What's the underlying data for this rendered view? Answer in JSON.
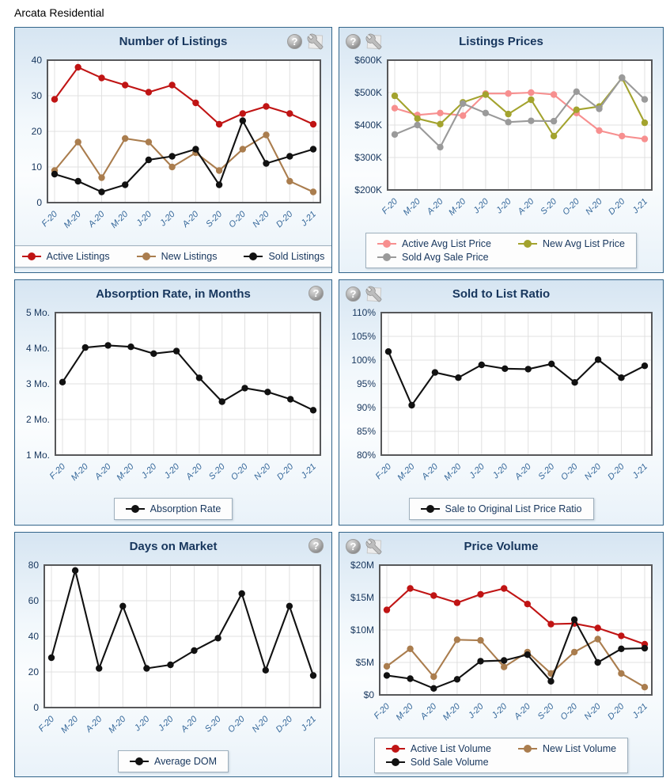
{
  "page_title": "Arcata Residential",
  "icon_names": {
    "help": "help-icon",
    "tools": "tools-icon"
  },
  "help_glyph": "?",
  "colors": {
    "active_red": "#c01414",
    "new_tan": "#aa7d4e",
    "sold_black": "#111111",
    "active_pink": "#f78f8f",
    "new_olive": "#a3a32e",
    "sold_gray": "#9a9a9a",
    "title_navy": "#17365d",
    "axis_steelblue": "#336699",
    "panel_border": "#33658a",
    "grid_line": "#e0e0e0",
    "plot_border": "#57585a"
  },
  "chart_data": [
    {
      "type": "line",
      "title": "Number of Listings",
      "icons": [
        "help-icon",
        "tools-icon"
      ],
      "icons_side": "right",
      "legend_position": "bottom",
      "legend_columns": 3,
      "grid": true,
      "categories": [
        "F-20",
        "M-20",
        "A-20",
        "M-20",
        "J-20",
        "J-20",
        "A-20",
        "S-20",
        "O-20",
        "N-20",
        "D-20",
        "J-21"
      ],
      "ylim": [
        0,
        40
      ],
      "ytick_values": [
        0,
        10,
        20,
        30,
        40
      ],
      "ytick_labels": [
        "0",
        "10",
        "20",
        "30",
        "40"
      ],
      "series": [
        {
          "name": "Active Listings",
          "color": "#c01414",
          "values": [
            29,
            38,
            35,
            33,
            31,
            33,
            28,
            22,
            25,
            27,
            25,
            22
          ]
        },
        {
          "name": "New Listings",
          "color": "#aa7d4e",
          "values": [
            9,
            17,
            7,
            18,
            17,
            10,
            14,
            9,
            15,
            19,
            6,
            3
          ]
        },
        {
          "name": "Sold Listings",
          "color": "#111111",
          "values": [
            8,
            6,
            3,
            5,
            12,
            13,
            15,
            5,
            23,
            11,
            13,
            15
          ]
        }
      ]
    },
    {
      "type": "line",
      "title": "Listings Prices",
      "icons": [
        "help-icon",
        "tools-icon"
      ],
      "icons_side": "left",
      "legend_position": "bottom",
      "legend_columns": 2,
      "grid": true,
      "categories": [
        "F-20",
        "M-20",
        "A-20",
        "M-20",
        "J-20",
        "J-20",
        "A-20",
        "S-20",
        "O-20",
        "N-20",
        "D-20",
        "J-21"
      ],
      "ylim": [
        200000,
        600000
      ],
      "ytick_values": [
        200000,
        300000,
        400000,
        500000,
        600000
      ],
      "ytick_labels": [
        "$200K",
        "$300K",
        "$400K",
        "$500K",
        "$600K"
      ],
      "series": [
        {
          "name": "Active Avg List Price",
          "color": "#f78f8f",
          "values": [
            452000,
            431000,
            437000,
            429000,
            497000,
            497000,
            500000,
            494000,
            437000,
            383000,
            366000,
            357000
          ]
        },
        {
          "name": "New Avg List Price",
          "color": "#a3a32e",
          "values": [
            490000,
            420000,
            403000,
            470000,
            494000,
            434000,
            478000,
            366000,
            447000,
            457000,
            545000,
            407000
          ]
        },
        {
          "name": "Sold Avg Sale Price",
          "color": "#9a9a9a",
          "values": [
            371000,
            400000,
            332000,
            466000,
            437000,
            409000,
            413000,
            412000,
            503000,
            450000,
            546000,
            479000
          ]
        }
      ]
    },
    {
      "type": "line",
      "title": "Absorption Rate, in Months",
      "icons": [
        "help-icon"
      ],
      "icons_side": "right",
      "legend_position": "bottom",
      "legend_columns": 1,
      "grid": true,
      "categories": [
        "F-20",
        "M-20",
        "A-20",
        "M-20",
        "J-20",
        "J-20",
        "A-20",
        "S-20",
        "O-20",
        "N-20",
        "D-20",
        "J-21"
      ],
      "ylim": [
        1,
        5
      ],
      "ytick_values": [
        1,
        2,
        3,
        4,
        5
      ],
      "ytick_labels": [
        "1 Mo.",
        "2 Mo.",
        "3 Mo.",
        "4 Mo.",
        "5 Mo."
      ],
      "series": [
        {
          "name": "Absorption Rate",
          "color": "#111111",
          "values": [
            3.05,
            4.02,
            4.08,
            4.04,
            3.85,
            3.92,
            3.17,
            2.5,
            2.88,
            2.77,
            2.57,
            2.26
          ]
        }
      ]
    },
    {
      "type": "line",
      "title": "Sold to List Ratio",
      "icons": [
        "help-icon",
        "tools-icon"
      ],
      "icons_side": "left",
      "legend_position": "bottom",
      "legend_columns": 1,
      "grid": true,
      "categories": [
        "F-20",
        "M-20",
        "A-20",
        "M-20",
        "J-20",
        "J-20",
        "A-20",
        "S-20",
        "O-20",
        "N-20",
        "D-20",
        "J-21"
      ],
      "ylim": [
        80,
        110
      ],
      "ytick_values": [
        80,
        85,
        90,
        95,
        100,
        105,
        110
      ],
      "ytick_labels": [
        "80%",
        "85%",
        "90%",
        "95%",
        "100%",
        "105%",
        "110%"
      ],
      "series": [
        {
          "name": "Sale to Original List Price Ratio",
          "color": "#111111",
          "values": [
            101.8,
            90.5,
            97.4,
            96.3,
            99.0,
            98.2,
            98.1,
            99.2,
            95.3,
            100.1,
            96.3,
            98.8
          ]
        }
      ]
    },
    {
      "type": "line",
      "title": "Days on Market",
      "icons": [
        "help-icon"
      ],
      "icons_side": "right",
      "legend_position": "bottom",
      "legend_columns": 1,
      "grid": true,
      "categories": [
        "F-20",
        "M-20",
        "A-20",
        "M-20",
        "J-20",
        "J-20",
        "A-20",
        "S-20",
        "O-20",
        "N-20",
        "D-20",
        "J-21"
      ],
      "ylim": [
        0,
        80
      ],
      "ytick_values": [
        0,
        20,
        40,
        60,
        80
      ],
      "ytick_labels": [
        "0",
        "20",
        "40",
        "60",
        "80"
      ],
      "series": [
        {
          "name": "Average DOM",
          "color": "#111111",
          "values": [
            28,
            77,
            22,
            57,
            22,
            24,
            32,
            39,
            64,
            21,
            57,
            18
          ]
        }
      ]
    },
    {
      "type": "line",
      "title": "Price Volume",
      "icons": [
        "help-icon",
        "tools-icon"
      ],
      "icons_side": "left",
      "legend_position": "bottom",
      "legend_columns": 2,
      "grid": true,
      "categories": [
        "F-20",
        "M-20",
        "A-20",
        "M-20",
        "J-20",
        "J-20",
        "A-20",
        "S-20",
        "O-20",
        "N-20",
        "D-20",
        "J-21"
      ],
      "ylim": [
        0,
        20000000
      ],
      "ytick_values": [
        0,
        5000000,
        10000000,
        15000000,
        20000000
      ],
      "ytick_labels": [
        "$0",
        "$5M",
        "$10M",
        "$15M",
        "$20M"
      ],
      "series": [
        {
          "name": "Active List Volume",
          "color": "#c01414",
          "values": [
            13100000,
            16400000,
            15300000,
            14200000,
            15500000,
            16400000,
            14000000,
            10900000,
            11000000,
            10300000,
            9100000,
            7800000
          ]
        },
        {
          "name": "New List Volume",
          "color": "#aa7d4e",
          "values": [
            4400000,
            7100000,
            2800000,
            8500000,
            8400000,
            4300000,
            6600000,
            3300000,
            6600000,
            8600000,
            3300000,
            1200000
          ]
        },
        {
          "name": "Sold Sale Volume",
          "color": "#111111",
          "values": [
            3000000,
            2500000,
            1000000,
            2400000,
            5200000,
            5300000,
            6200000,
            2100000,
            11600000,
            5000000,
            7100000,
            7200000
          ]
        }
      ]
    }
  ]
}
